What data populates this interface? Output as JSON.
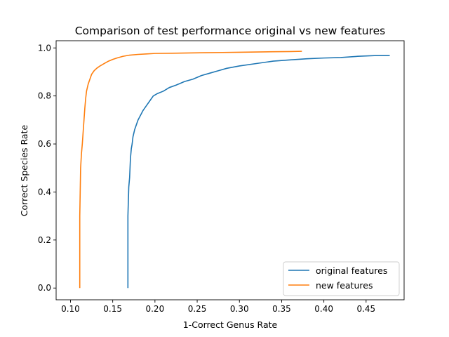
{
  "chart_data": {
    "type": "line",
    "title": "Comparison of test performance original vs new features",
    "xlabel": "1-Correct Genus Rate",
    "ylabel": "Correct Species Rate",
    "xlim": [
      0.083,
      0.495
    ],
    "ylim": [
      -0.049,
      1.03
    ],
    "xticks": [
      0.1,
      0.15,
      0.2,
      0.25,
      0.3,
      0.35,
      0.4,
      0.45
    ],
    "xtick_labels": [
      "0.10",
      "0.15",
      "0.20",
      "0.25",
      "0.30",
      "0.35",
      "0.40",
      "0.45"
    ],
    "yticks": [
      0.0,
      0.2,
      0.4,
      0.6,
      0.8,
      1.0
    ],
    "ytick_labels": [
      "0.0",
      "0.2",
      "0.4",
      "0.6",
      "0.8",
      "1.0"
    ],
    "grid": false,
    "legend_position": "lower-right",
    "series": [
      {
        "name": "original features",
        "color": "#1f77b4",
        "points": [
          [
            0.168,
            0.0
          ],
          [
            0.168,
            0.1
          ],
          [
            0.168,
            0.2
          ],
          [
            0.168,
            0.3
          ],
          [
            0.1685,
            0.36
          ],
          [
            0.169,
            0.42
          ],
          [
            0.17,
            0.46
          ],
          [
            0.1705,
            0.5
          ],
          [
            0.171,
            0.54
          ],
          [
            0.172,
            0.58
          ],
          [
            0.173,
            0.6
          ],
          [
            0.174,
            0.63
          ],
          [
            0.176,
            0.66
          ],
          [
            0.178,
            0.68
          ],
          [
            0.18,
            0.7
          ],
          [
            0.183,
            0.72
          ],
          [
            0.186,
            0.74
          ],
          [
            0.19,
            0.76
          ],
          [
            0.194,
            0.78
          ],
          [
            0.198,
            0.8
          ],
          [
            0.203,
            0.81
          ],
          [
            0.21,
            0.82
          ],
          [
            0.217,
            0.835
          ],
          [
            0.225,
            0.845
          ],
          [
            0.235,
            0.86
          ],
          [
            0.245,
            0.87
          ],
          [
            0.255,
            0.885
          ],
          [
            0.265,
            0.895
          ],
          [
            0.275,
            0.905
          ],
          [
            0.285,
            0.915
          ],
          [
            0.3,
            0.925
          ],
          [
            0.32,
            0.935
          ],
          [
            0.34,
            0.945
          ],
          [
            0.36,
            0.95
          ],
          [
            0.38,
            0.955
          ],
          [
            0.4,
            0.958
          ],
          [
            0.42,
            0.96
          ],
          [
            0.44,
            0.965
          ],
          [
            0.46,
            0.968
          ],
          [
            0.478,
            0.968
          ]
        ]
      },
      {
        "name": "new features",
        "color": "#ff7f0e",
        "points": [
          [
            0.111,
            0.0
          ],
          [
            0.111,
            0.1
          ],
          [
            0.111,
            0.2
          ],
          [
            0.111,
            0.3
          ],
          [
            0.1115,
            0.4
          ],
          [
            0.112,
            0.5
          ],
          [
            0.113,
            0.56
          ],
          [
            0.114,
            0.6
          ],
          [
            0.115,
            0.65
          ],
          [
            0.116,
            0.7
          ],
          [
            0.117,
            0.75
          ],
          [
            0.118,
            0.79
          ],
          [
            0.119,
            0.82
          ],
          [
            0.121,
            0.85
          ],
          [
            0.123,
            0.87
          ],
          [
            0.125,
            0.89
          ],
          [
            0.128,
            0.905
          ],
          [
            0.131,
            0.915
          ],
          [
            0.135,
            0.925
          ],
          [
            0.14,
            0.935
          ],
          [
            0.145,
            0.945
          ],
          [
            0.15,
            0.952
          ],
          [
            0.155,
            0.958
          ],
          [
            0.162,
            0.965
          ],
          [
            0.17,
            0.97
          ],
          [
            0.18,
            0.973
          ],
          [
            0.19,
            0.975
          ],
          [
            0.2,
            0.977
          ],
          [
            0.22,
            0.978
          ],
          [
            0.24,
            0.979
          ],
          [
            0.26,
            0.98
          ],
          [
            0.28,
            0.981
          ],
          [
            0.3,
            0.982
          ],
          [
            0.32,
            0.983
          ],
          [
            0.34,
            0.984
          ],
          [
            0.36,
            0.985
          ],
          [
            0.374,
            0.986
          ]
        ]
      }
    ]
  }
}
